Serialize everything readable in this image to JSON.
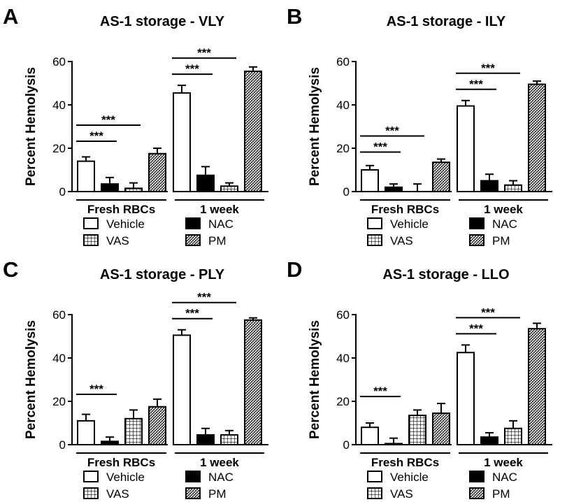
{
  "chart_data": [
    {
      "panel_label": "A",
      "type": "bar",
      "title": "AS-1 storage - VLY",
      "ylabel": "Percent Hemolysis",
      "ylim": [
        0,
        60
      ],
      "yticks": [
        "0",
        "20",
        "40",
        "60"
      ],
      "groups": [
        "Fresh RBCs",
        "1 week"
      ],
      "series": [
        {
          "name": "Vehicle",
          "values": [
            14,
            45.5
          ],
          "errors": [
            2,
            3.5
          ]
        },
        {
          "name": "NAC",
          "values": [
            3.5,
            7.5
          ],
          "errors": [
            3,
            4
          ]
        },
        {
          "name": "VAS",
          "values": [
            1.5,
            2.5
          ],
          "errors": [
            2.5,
            1.5
          ]
        },
        {
          "name": "PM",
          "values": [
            17.5,
            55.5
          ],
          "errors": [
            2.5,
            2
          ]
        }
      ],
      "significance": [
        {
          "label": "***",
          "group": 0,
          "from": 0,
          "to": 1
        },
        {
          "label": "***",
          "group": 0,
          "from": 0,
          "to": 2
        },
        {
          "label": "***",
          "group": 1,
          "from": 0,
          "to": 1
        },
        {
          "label": "***",
          "group": 1,
          "from": 0,
          "to": 2
        }
      ]
    },
    {
      "panel_label": "B",
      "type": "bar",
      "title": "AS-1 storage - ILY",
      "ylabel": "Percent Hemolysis",
      "ylim": [
        0,
        60
      ],
      "yticks": [
        "0",
        "20",
        "40",
        "60"
      ],
      "groups": [
        "Fresh RBCs",
        "1 week"
      ],
      "series": [
        {
          "name": "Vehicle",
          "values": [
            10,
            39.5
          ],
          "errors": [
            2,
            2.5
          ]
        },
        {
          "name": "NAC",
          "values": [
            2,
            5
          ],
          "errors": [
            1.5,
            3
          ]
        },
        {
          "name": "VAS",
          "values": [
            0,
            3
          ],
          "errors": [
            3.5,
            2
          ]
        },
        {
          "name": "PM",
          "values": [
            13.5,
            49.5
          ],
          "errors": [
            1.5,
            1.5
          ]
        }
      ],
      "significance": [
        {
          "label": "***",
          "group": 0,
          "from": 0,
          "to": 1
        },
        {
          "label": "***",
          "group": 0,
          "from": 0,
          "to": 2
        },
        {
          "label": "***",
          "group": 1,
          "from": 0,
          "to": 1
        },
        {
          "label": "***",
          "group": 1,
          "from": 0,
          "to": 2
        }
      ]
    },
    {
      "panel_label": "C",
      "type": "bar",
      "title": "AS-1 storage - PLY",
      "ylabel": "Percent Hemolysis",
      "ylim": [
        0,
        60
      ],
      "yticks": [
        "0",
        "20",
        "40",
        "60"
      ],
      "groups": [
        "Fresh RBCs",
        "1 week"
      ],
      "series": [
        {
          "name": "Vehicle",
          "values": [
            11,
            50.5
          ],
          "errors": [
            3,
            2.5
          ]
        },
        {
          "name": "NAC",
          "values": [
            1.5,
            4.5
          ],
          "errors": [
            2,
            3
          ]
        },
        {
          "name": "VAS",
          "values": [
            12,
            4.5
          ],
          "errors": [
            4,
            2
          ]
        },
        {
          "name": "PM",
          "values": [
            17.5,
            57.5
          ],
          "errors": [
            3.5,
            1
          ]
        }
      ],
      "significance": [
        {
          "label": "***",
          "group": 0,
          "from": 0,
          "to": 1
        },
        {
          "label": "***",
          "group": 1,
          "from": 0,
          "to": 1
        },
        {
          "label": "***",
          "group": 1,
          "from": 0,
          "to": 2
        }
      ]
    },
    {
      "panel_label": "D",
      "type": "bar",
      "title": "AS-1 storage - LLO",
      "ylabel": "Percent Hemolysis",
      "ylim": [
        0,
        60
      ],
      "yticks": [
        "0",
        "20",
        "40",
        "60"
      ],
      "groups": [
        "Fresh RBCs",
        "1 week"
      ],
      "series": [
        {
          "name": "Vehicle",
          "values": [
            8,
            42.5
          ],
          "errors": [
            2,
            3.5
          ]
        },
        {
          "name": "NAC",
          "values": [
            0.5,
            3.5
          ],
          "errors": [
            2.5,
            2
          ]
        },
        {
          "name": "VAS",
          "values": [
            13.5,
            7.5
          ],
          "errors": [
            2.5,
            3.5
          ]
        },
        {
          "name": "PM",
          "values": [
            14.5,
            53.5
          ],
          "errors": [
            4.5,
            2.5
          ]
        }
      ],
      "significance": [
        {
          "label": "***",
          "group": 0,
          "from": 0,
          "to": 1
        },
        {
          "label": "***",
          "group": 1,
          "from": 0,
          "to": 1
        },
        {
          "label": "***",
          "group": 1,
          "from": 0,
          "to": 2
        }
      ]
    }
  ],
  "legend": [
    {
      "name": "Vehicle",
      "pattern": "white"
    },
    {
      "name": "NAC",
      "pattern": "black"
    },
    {
      "name": "VAS",
      "pattern": "grid"
    },
    {
      "name": "PM",
      "pattern": "dots"
    }
  ]
}
